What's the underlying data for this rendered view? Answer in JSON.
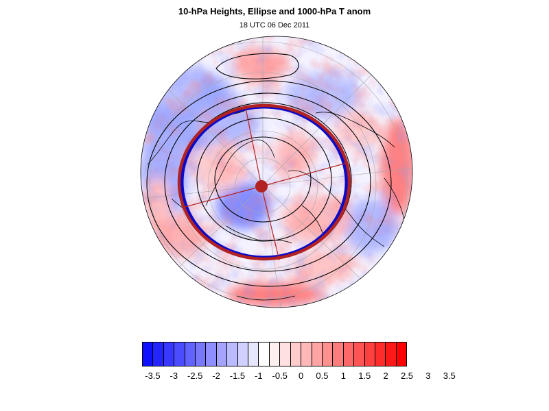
{
  "header": {
    "title": "10-hPa Heights, Ellipse and 1000-hPa T anom",
    "subtitle": "18 UTC 06 Dec 2011"
  },
  "map": {
    "projection": "orthographic-north-polar",
    "field": "1000-hPa T anom",
    "contours": "10-hPa Heights",
    "ellipse_color": "#b22222",
    "vortex_edge_color": "#0000cc"
  },
  "colorbar": {
    "colors": [
      "#1010ff",
      "#2424ff",
      "#3838ff",
      "#4c4cff",
      "#6262ff",
      "#7878ff",
      "#8e8eff",
      "#a4a4ff",
      "#babaff",
      "#d0d0ff",
      "#e6e6ff",
      "#ffffff",
      "#fff0f0",
      "#ffe0e0",
      "#ffcccc",
      "#ffb8b8",
      "#ffa4a4",
      "#ff9090",
      "#ff7c7c",
      "#ff6868",
      "#ff5454",
      "#ff4040",
      "#ff2c2c",
      "#ff1818",
      "#ff0000"
    ],
    "tick_labels": [
      "-3.5",
      "-3",
      "-2.5",
      "-2",
      "-1.5",
      "-1",
      "-0.5",
      "0",
      "0.5",
      "1",
      "1.5",
      "2",
      "2.5",
      "3",
      "3.5"
    ]
  }
}
